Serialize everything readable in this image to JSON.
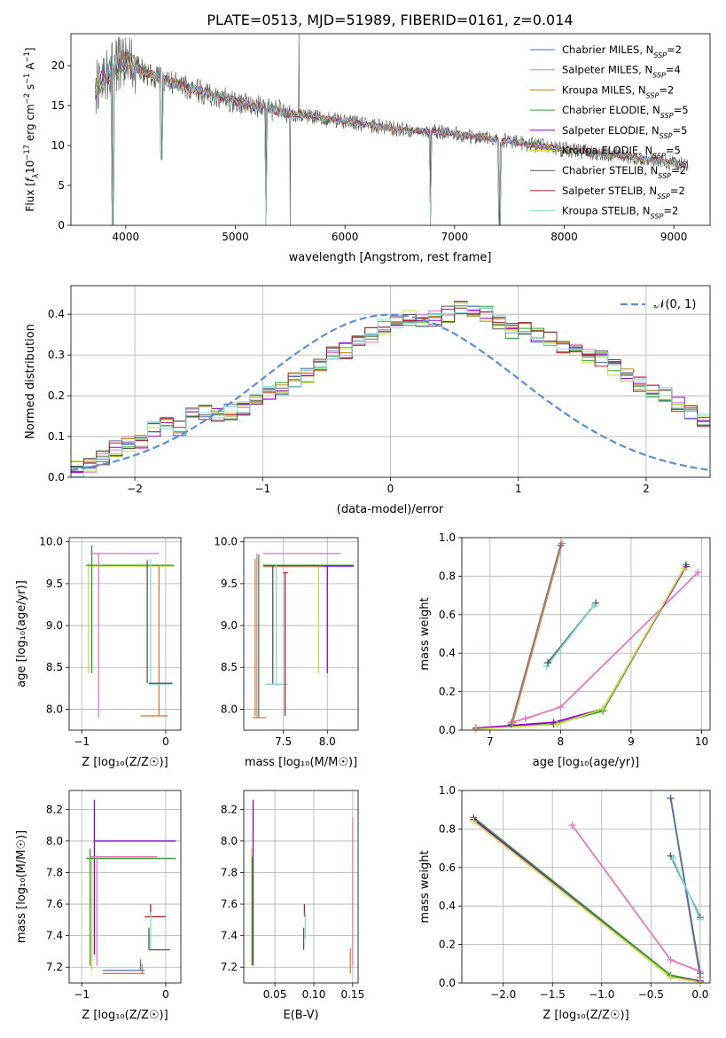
{
  "figure": {
    "title": "PLATE=0513, MJD=51989, FIBERID=0161, z=0.014"
  },
  "colors": {
    "chabrier_miles": "#4c72b0",
    "salpeter_miles": "#e377c2",
    "kroupa_miles": "#b8860b",
    "chabrier_elodie": "#2ca02c",
    "salpeter_elodie": "#9400d3",
    "kroupa_elodie": "#c8e03c",
    "chabrier_stelib": "#555555",
    "salpeter_stelib": "#b22222",
    "kroupa_stelib": "#7fdfdf",
    "orange": "#e07b39",
    "normal_curve": "#5a8fd8",
    "grid": "#b0b0b0"
  },
  "chart_data": [
    {
      "id": "spectrum",
      "type": "line",
      "xlabel": "wavelength [Angstrom, rest frame]",
      "ylabel": "Flux [f_λ 10^-17 erg cm^-2 s^-1 A^-1]",
      "xlim": [
        3500,
        9330
      ],
      "ylim": [
        0,
        24
      ],
      "xticks": [
        4000,
        5000,
        6000,
        7000,
        8000,
        9000
      ],
      "yticks": [
        0,
        5,
        10,
        15,
        20
      ],
      "grid": false,
      "legend_position": "top-right",
      "series": [
        {
          "name": "Chabrier MILES, N_SSP=2",
          "key": "chabrier_miles"
        },
        {
          "name": "Salpeter MILES, N_SSP=4",
          "key": "salpeter_miles"
        },
        {
          "name": "Kroupa MILES, N_SSP=2",
          "key": "kroupa_miles"
        },
        {
          "name": "Chabrier ELODIE, N_SSP=5",
          "key": "chabrier_elodie"
        },
        {
          "name": "Salpeter ELODIE, N_SSP=5",
          "key": "salpeter_elodie"
        },
        {
          "name": "Kroupa ELODIE, N_SSP=5",
          "key": "kroupa_elodie"
        },
        {
          "name": "Chabrier STELIB, N_SSP=2",
          "key": "chabrier_stelib"
        },
        {
          "name": "Salpeter STELIB, N_SSP=2",
          "key": "salpeter_stelib"
        },
        {
          "name": "Kroupa STELIB, N_SSP=2",
          "key": "kroupa_stelib"
        }
      ],
      "continuum": [
        [
          3720,
          17.0
        ],
        [
          3800,
          18.5
        ],
        [
          3900,
          20.0
        ],
        [
          4000,
          20.5
        ],
        [
          4200,
          19.0
        ],
        [
          4500,
          17.5
        ],
        [
          5000,
          15.5
        ],
        [
          5500,
          14.0
        ],
        [
          6000,
          13.0
        ],
        [
          6500,
          12.0
        ],
        [
          7000,
          11.5
        ],
        [
          7500,
          10.5
        ],
        [
          8000,
          9.5
        ],
        [
          8500,
          8.8
        ],
        [
          9000,
          7.8
        ],
        [
          9130,
          7.5
        ]
      ],
      "dips": [
        [
          3880,
          0
        ],
        [
          4330,
          8.2
        ],
        [
          5280,
          0
        ],
        [
          6780,
          0
        ],
        [
          7410,
          0
        ]
      ],
      "spikes": [
        [
          4970,
          24
        ],
        [
          5500,
          0
        ],
        [
          5580,
          24
        ],
        [
          6570,
          20
        ],
        [
          6730,
          17
        ]
      ]
    },
    {
      "id": "residuals",
      "type": "step",
      "xlabel": "(data-model)/error",
      "ylabel": "Normed distribution",
      "xlim": [
        -2.5,
        2.5
      ],
      "ylim": [
        0,
        0.47
      ],
      "xticks": [
        -2,
        -1,
        0,
        1,
        2
      ],
      "yticks": [
        0.0,
        0.1,
        0.2,
        0.3,
        0.4
      ],
      "grid": true,
      "legend_position": "top-right",
      "normal_label": "𝒩(0, 1)",
      "bin_width": 0.1,
      "bins_start": -2.5,
      "hist_base": [
        0.02,
        0.03,
        0.05,
        0.07,
        0.08,
        0.09,
        0.12,
        0.13,
        0.12,
        0.15,
        0.16,
        0.15,
        0.16,
        0.17,
        0.19,
        0.21,
        0.22,
        0.24,
        0.25,
        0.27,
        0.3,
        0.31,
        0.33,
        0.35,
        0.37,
        0.38,
        0.39,
        0.38,
        0.39,
        0.4,
        0.42,
        0.41,
        0.4,
        0.38,
        0.36,
        0.37,
        0.35,
        0.34,
        0.32,
        0.31,
        0.3,
        0.29,
        0.27,
        0.25,
        0.23,
        0.21,
        0.2,
        0.18,
        0.16,
        0.14,
        0.12,
        0.11,
        0.1,
        0.09,
        0.08,
        0.07,
        0.06,
        0.05,
        0.05,
        0.04,
        0.04,
        0.035,
        0.03,
        0.03,
        0.025,
        0.02,
        0.02
      ]
    },
    {
      "id": "age_vs_Z",
      "type": "scatter",
      "xlabel": "Z [log₁₀(Z/Z☉)]",
      "ylabel": "age  [log₁₀(age/yr)]",
      "xlim": [
        -1.15,
        0.18
      ],
      "ylim": [
        7.75,
        10.05
      ],
      "xticks": [
        -1,
        0
      ],
      "yticks": [
        8.0,
        8.5,
        9.0,
        9.5,
        10.0
      ],
      "grid": true,
      "segments": [
        {
          "key": "kroupa_elodie",
          "h": [
            -0.92,
            0.1,
            9.71
          ],
          "v": [
            -0.92,
            8.43,
            9.75
          ]
        },
        {
          "key": "chabrier_elodie",
          "h": [
            -0.95,
            0.1,
            9.72
          ],
          "v": [
            -0.88,
            8.43,
            9.96
          ]
        },
        {
          "key": "salpeter_miles",
          "h": [
            -0.9,
            -0.08,
            9.86
          ],
          "v": [
            -0.8,
            7.9,
            9.87
          ]
        },
        {
          "key": "orange",
          "h": [
            -0.3,
            0.02,
            7.92
          ],
          "v": [
            -0.08,
            7.92,
            9.72
          ]
        },
        {
          "key": "kroupa_stelib",
          "h": [
            -0.2,
            0.08,
            8.3
          ],
          "v": [
            -0.18,
            8.3,
            9.8
          ]
        },
        {
          "key": "chabrier_stelib",
          "h": [
            -0.2,
            0.08,
            8.31
          ],
          "v": [
            -0.22,
            8.31,
            9.78
          ]
        }
      ]
    },
    {
      "id": "age_vs_mass",
      "type": "scatter",
      "xlabel": "mass [log₁₀(M/M☉)]",
      "ylabel": "",
      "xlim": [
        7.05,
        8.35
      ],
      "ylim": [
        7.75,
        10.05
      ],
      "xticks": [
        7.5,
        8.0
      ],
      "yticks": [
        8.0,
        8.5,
        9.0,
        9.5,
        10.0
      ],
      "grid": true,
      "segments": [
        {
          "key": "salpeter_miles",
          "h": [
            7.27,
            8.15,
            9.86
          ],
          "v": [
            7.2,
            7.9,
            9.86
          ]
        },
        {
          "key": "chabrier_elodie",
          "h": [
            7.27,
            8.3,
            9.72
          ],
          "v": [
            7.22,
            7.9,
            9.85
          ]
        },
        {
          "key": "salpeter_elodie",
          "h": [
            7.27,
            8.3,
            9.71
          ],
          "v": [
            8.0,
            8.43,
            9.72
          ]
        },
        {
          "key": "kroupa_elodie",
          "h": [
            7.27,
            7.95,
            9.7
          ],
          "v": [
            7.9,
            8.43,
            9.7
          ]
        },
        {
          "key": "orange",
          "h": [
            7.15,
            7.3,
            7.9
          ],
          "v": [
            7.18,
            7.92,
            9.8
          ]
        },
        {
          "key": "chabrier_stelib",
          "h": [
            7.3,
            7.55,
            8.3
          ],
          "v": [
            7.38,
            8.3,
            9.72
          ]
        },
        {
          "key": "kroupa_stelib",
          "h": [
            7.3,
            7.55,
            8.3
          ],
          "v": [
            7.42,
            8.3,
            9.72
          ]
        },
        {
          "key": "salpeter_stelib",
          "h": [
            7.5,
            7.55,
            9.63
          ],
          "v": [
            7.52,
            7.92,
            9.63
          ]
        }
      ]
    },
    {
      "id": "weight_vs_age",
      "type": "line",
      "xlabel": "age  [log₁₀(age/yr)]",
      "ylabel": "mass weight",
      "xlim": [
        6.6,
        10.12
      ],
      "ylim": [
        0,
        1
      ],
      "xticks": [
        7,
        8,
        9,
        10
      ],
      "yticks": [
        0.0,
        0.2,
        0.4,
        0.6,
        0.8,
        1.0
      ],
      "grid": true,
      "series": [
        {
          "key": "salpeter_miles",
          "x": [
            7.3,
            7.5,
            8.0,
            9.95
          ],
          "y": [
            0.04,
            0.06,
            0.12,
            0.82
          ]
        },
        {
          "key": "chabrier_elodie",
          "x": [
            6.8,
            7.9,
            8.6,
            9.78
          ],
          "y": [
            0.01,
            0.03,
            0.1,
            0.86
          ]
        },
        {
          "key": "salpeter_elodie",
          "x": [
            6.8,
            7.9,
            8.6,
            9.78
          ],
          "y": [
            0.01,
            0.04,
            0.11,
            0.85
          ]
        },
        {
          "key": "kroupa_elodie",
          "x": [
            6.8,
            7.95,
            8.6,
            9.75
          ],
          "y": [
            0.005,
            0.03,
            0.11,
            0.84
          ]
        },
        {
          "key": "chabrier_miles",
          "x": [
            7.3,
            8.0
          ],
          "y": [
            0.03,
            0.96
          ]
        },
        {
          "key": "orange",
          "x": [
            7.32,
            8.02
          ],
          "y": [
            0.04,
            0.97
          ]
        },
        {
          "key": "chabrier_stelib",
          "x": [
            7.82,
            8.5
          ],
          "y": [
            0.35,
            0.66
          ]
        },
        {
          "key": "kroupa_stelib",
          "x": [
            7.8,
            8.48
          ],
          "y": [
            0.33,
            0.65
          ]
        }
      ]
    },
    {
      "id": "mass_vs_Z",
      "type": "scatter",
      "xlabel": "Z [log₁₀(Z/Z☉)]",
      "ylabel": "mass [log₁₀(M/M☉)]",
      "xlim": [
        -1.15,
        0.18
      ],
      "ylim": [
        7.1,
        8.32
      ],
      "xticks": [
        -1,
        0
      ],
      "yticks": [
        7.2,
        7.4,
        7.6,
        7.8,
        8.0,
        8.2
      ],
      "grid": true,
      "segments": [
        {
          "key": "salpeter_elodie",
          "h": [
            -0.85,
            0.12,
            8.0
          ],
          "v": [
            -0.85,
            7.28,
            8.26
          ]
        },
        {
          "key": "kroupa_elodie",
          "h": [
            -0.95,
            0.12,
            7.89
          ],
          "v": [
            -0.88,
            7.18,
            7.9
          ]
        },
        {
          "key": "chabrier_elodie",
          "h": [
            -0.95,
            0.12,
            7.89
          ],
          "v": [
            -0.9,
            7.21,
            7.95
          ]
        },
        {
          "key": "salpeter_miles",
          "h": [
            -0.9,
            -0.1,
            7.9
          ],
          "v": [
            -0.82,
            7.21,
            7.9
          ]
        },
        {
          "key": "salpeter_stelib",
          "h": [
            -0.25,
            0.0,
            7.52
          ],
          "v": [
            -0.18,
            7.52,
            7.6
          ]
        },
        {
          "key": "kroupa_stelib",
          "h": [
            -0.2,
            0.05,
            7.4
          ],
          "v": [
            -0.18,
            7.31,
            7.55
          ]
        },
        {
          "key": "chabrier_stelib",
          "h": [
            -0.2,
            0.05,
            7.31
          ],
          "v": [
            -0.2,
            7.31,
            7.45
          ]
        },
        {
          "key": "orange",
          "h": [
            -0.75,
            -0.25,
            7.16
          ],
          "v": [
            -0.28,
            7.16,
            7.22
          ]
        },
        {
          "key": "chabrier_miles",
          "h": [
            -0.75,
            -0.25,
            7.18
          ],
          "v": [
            -0.3,
            7.18,
            7.25
          ]
        }
      ]
    },
    {
      "id": "mass_vs_ebv",
      "type": "scatter",
      "xlabel": "E(B-V)",
      "ylabel": "",
      "xlim": [
        0.01,
        0.157
      ],
      "ylim": [
        7.1,
        8.32
      ],
      "xticks": [
        0.05,
        0.1,
        0.15
      ],
      "yticks": [
        7.2,
        7.4,
        7.6,
        7.8,
        8.0,
        8.2
      ],
      "grid": true,
      "segments": [
        {
          "key": "salpeter_elodie",
          "h": null,
          "v": [
            0.022,
            7.21,
            8.26
          ]
        },
        {
          "key": "kroupa_elodie",
          "h": null,
          "v": [
            0.02,
            7.21,
            7.95
          ]
        },
        {
          "key": "chabrier_elodie",
          "h": null,
          "v": [
            0.021,
            7.21,
            7.9
          ]
        },
        {
          "key": "salpeter_stelib",
          "h": null,
          "v": [
            0.088,
            7.52,
            7.6
          ]
        },
        {
          "key": "kroupa_stelib",
          "h": null,
          "v": [
            0.089,
            7.38,
            7.55
          ]
        },
        {
          "key": "chabrier_stelib",
          "h": null,
          "v": [
            0.087,
            7.31,
            7.45
          ]
        },
        {
          "key": "salpeter_miles",
          "h": null,
          "v": [
            0.15,
            7.21,
            8.15
          ]
        },
        {
          "key": "orange",
          "h": null,
          "v": [
            0.147,
            7.16,
            7.32
          ]
        }
      ]
    },
    {
      "id": "weight_vs_Z",
      "type": "line",
      "xlabel": "Z [log₁₀(Z/Z☉)]",
      "ylabel": "mass weight",
      "xlim": [
        -2.42,
        0.1
      ],
      "ylim": [
        0,
        1
      ],
      "xticks": [
        -2.0,
        -1.5,
        -1.0,
        -0.5,
        0.0
      ],
      "yticks": [
        0.0,
        0.2,
        0.4,
        0.6,
        0.8,
        1.0
      ],
      "grid": true,
      "series": [
        {
          "key": "chabrier_elodie",
          "x": [
            -2.3,
            -0.3,
            0.0
          ],
          "y": [
            0.86,
            0.04,
            0.01
          ]
        },
        {
          "key": "salpeter_elodie",
          "x": [
            -2.3,
            -0.3,
            0.0
          ],
          "y": [
            0.85,
            0.03,
            0.01
          ]
        },
        {
          "key": "kroupa_elodie",
          "x": [
            -2.3,
            -0.3,
            0.0
          ],
          "y": [
            0.84,
            0.03,
            0.005
          ]
        },
        {
          "key": "salpeter_miles",
          "x": [
            -1.3,
            -0.3,
            0.0
          ],
          "y": [
            0.82,
            0.12,
            0.06
          ]
        },
        {
          "key": "orange",
          "x": [
            -0.3,
            0.0
          ],
          "y": [
            0.96,
            0.03
          ]
        },
        {
          "key": "chabrier_miles",
          "x": [
            -0.3,
            0.0
          ],
          "y": [
            0.96,
            0.05
          ]
        },
        {
          "key": "chabrier_stelib",
          "x": [
            -0.3,
            0.0
          ],
          "y": [
            0.66,
            0.34
          ]
        },
        {
          "key": "kroupa_stelib",
          "x": [
            -0.28,
            0.0
          ],
          "y": [
            0.65,
            0.33
          ]
        }
      ]
    }
  ]
}
